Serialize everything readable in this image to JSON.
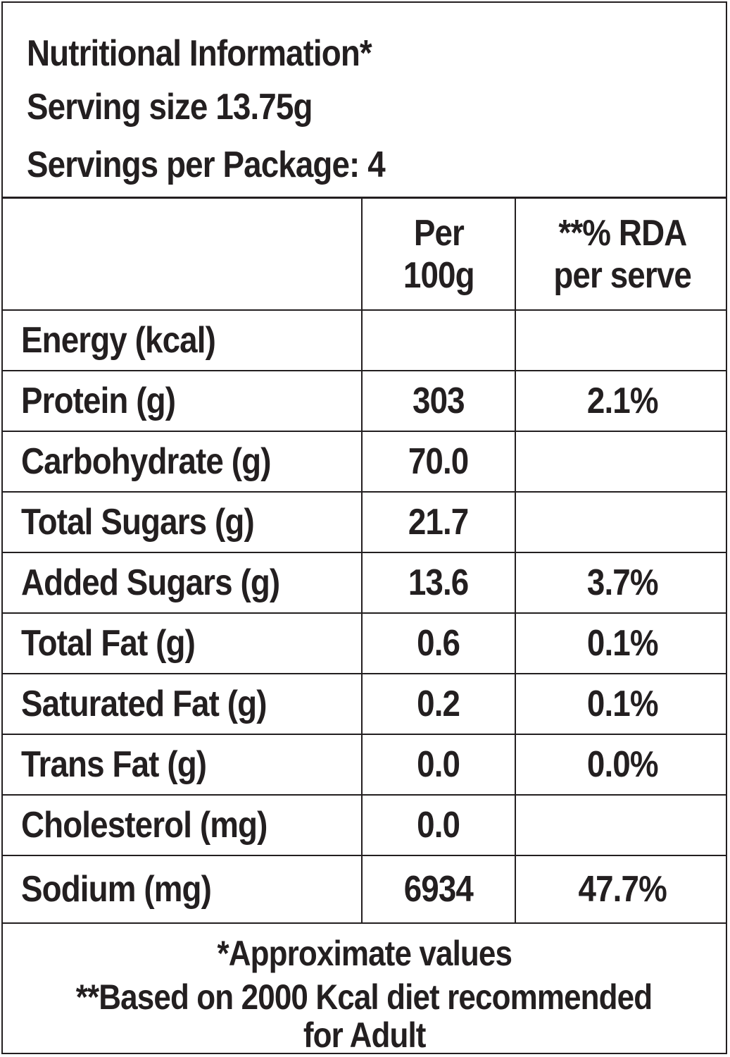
{
  "header": {
    "title": "Nutritional Information*",
    "serving_size": "Serving size 13.75g",
    "servings_per_package": "Servings per Package: 4"
  },
  "columns": {
    "per_100g_line1": "Per",
    "per_100g_line2": "100g",
    "rda_line1": "**% RDA",
    "rda_line2": "per serve"
  },
  "rows": [
    {
      "nutrient": "Energy (kcal)",
      "per_100g": "",
      "rda": ""
    },
    {
      "nutrient": "Protein (g)",
      "per_100g": "303",
      "rda": "2.1%"
    },
    {
      "nutrient": "Carbohydrate (g)",
      "per_100g": "70.0",
      "rda": ""
    },
    {
      "nutrient": "Total Sugars (g)",
      "per_100g": "21.7",
      "rda": ""
    },
    {
      "nutrient": "Added Sugars (g)",
      "per_100g": "13.6",
      "rda": "3.7%"
    },
    {
      "nutrient": "Total Fat (g)",
      "per_100g": "0.6",
      "rda": "0.1%"
    },
    {
      "nutrient": "Saturated Fat (g)",
      "per_100g": "0.2",
      "rda": "0.1%"
    },
    {
      "nutrient": "Trans Fat (g)",
      "per_100g": "0.0",
      "rda": "0.0%"
    },
    {
      "nutrient": "Cholesterol (mg)",
      "per_100g": "0.0",
      "rda": ""
    },
    {
      "nutrient": "Sodium (mg)",
      "per_100g": "6934",
      "rda": "47.7%"
    }
  ],
  "footer": {
    "note1": "*Approximate values",
    "note2": "**Based on 2000 Kcal diet recommended",
    "note3": "for Adult"
  }
}
